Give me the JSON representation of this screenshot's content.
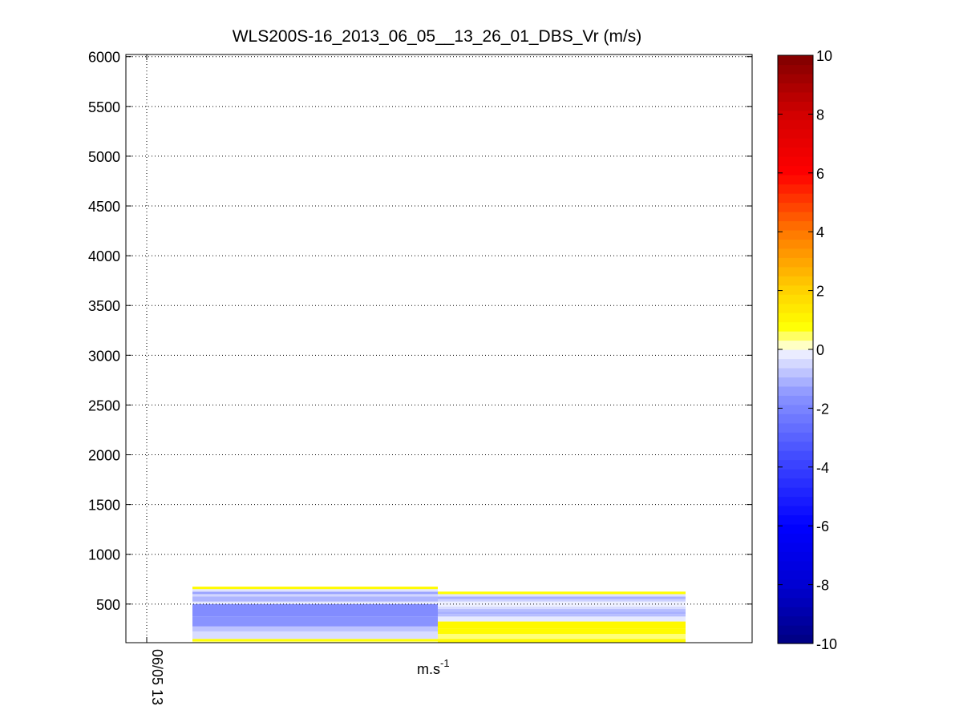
{
  "chart_data": {
    "type": "heatmap",
    "title": "WLS200S-16_2013_06_05__13_26_01_DBS_Vr (m/s)",
    "xlabel_base": "m.s",
    "xlabel_sup": "-1",
    "ylabel": "",
    "ylim": [
      100,
      6000
    ],
    "yticks": [
      500,
      1000,
      1500,
      2000,
      2500,
      3000,
      3500,
      4000,
      4500,
      5000,
      5500,
      6000
    ],
    "xtick_labels": [
      "06/05 13"
    ],
    "grid": true,
    "colorbar": {
      "range": [
        -10,
        10
      ],
      "ticks": [
        -10,
        -8,
        -6,
        -4,
        -2,
        0,
        2,
        4,
        6,
        8,
        10
      ]
    },
    "columns": [
      {
        "cells": [
          {
            "y0": 100,
            "y1": 125,
            "v": 0.3
          },
          {
            "y0": 125,
            "y1": 150,
            "v": 0.8
          },
          {
            "y0": 150,
            "y1": 225,
            "v": -0.4
          },
          {
            "y0": 225,
            "y1": 275,
            "v": -0.8
          },
          {
            "y0": 275,
            "y1": 375,
            "v": -1.6
          },
          {
            "y0": 375,
            "y1": 500,
            "v": -1.8
          },
          {
            "y0": 500,
            "y1": 525,
            "v": -0.2
          },
          {
            "y0": 525,
            "y1": 575,
            "v": -1.0
          },
          {
            "y0": 575,
            "y1": 600,
            "v": -0.5
          },
          {
            "y0": 600,
            "y1": 625,
            "v": -1.3
          },
          {
            "y0": 625,
            "y1": 650,
            "v": -0.3
          },
          {
            "y0": 650,
            "y1": 675,
            "v": 0.9
          }
        ]
      },
      {
        "cells": [
          {
            "y0": 100,
            "y1": 150,
            "v": 0.9
          },
          {
            "y0": 150,
            "y1": 200,
            "v": 0.4
          },
          {
            "y0": 200,
            "y1": 250,
            "v": 0.9
          },
          {
            "y0": 250,
            "y1": 325,
            "v": 1.0
          },
          {
            "y0": 325,
            "y1": 375,
            "v": -0.2
          },
          {
            "y0": 375,
            "y1": 400,
            "v": -0.9
          },
          {
            "y0": 400,
            "y1": 425,
            "v": -1.1
          },
          {
            "y0": 425,
            "y1": 450,
            "v": -0.9
          },
          {
            "y0": 450,
            "y1": 475,
            "v": -0.4
          },
          {
            "y0": 475,
            "y1": 525,
            "v": -0.1
          },
          {
            "y0": 525,
            "y1": 550,
            "v": -0.6
          },
          {
            "y0": 550,
            "y1": 575,
            "v": -1.1
          },
          {
            "y0": 575,
            "y1": 600,
            "v": -0.3
          },
          {
            "y0": 600,
            "y1": 625,
            "v": 0.8
          }
        ]
      }
    ]
  }
}
